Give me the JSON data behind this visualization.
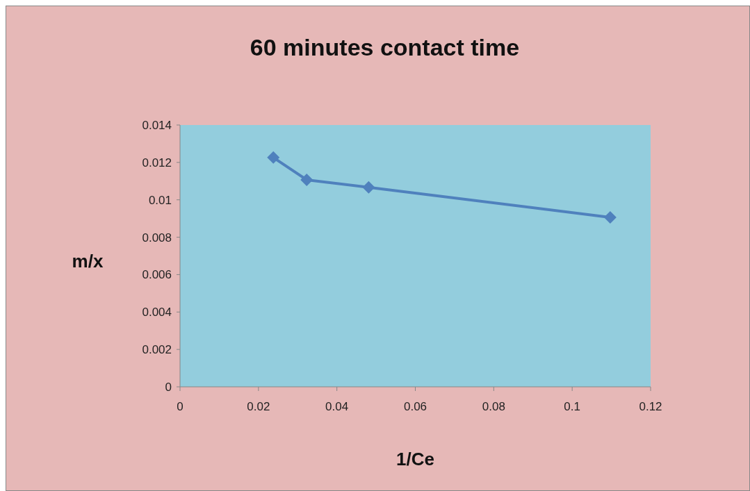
{
  "chart_data": {
    "type": "line",
    "title": "60 minutes contact time",
    "xlabel": "1/Ce",
    "ylabel": "m/x",
    "x": [
      0.0238,
      0.0323,
      0.0481,
      0.1097
    ],
    "series": [
      {
        "color": "#4f81bd",
        "values": [
          0.01226,
          0.01107,
          0.01067,
          0.00906
        ]
      }
    ],
    "xlim": [
      0,
      0.12
    ],
    "xticks": [
      0,
      0.02,
      0.04,
      0.06,
      0.08,
      0.1,
      0.12
    ],
    "ylim": [
      0,
      0.014
    ],
    "yticks": [
      0,
      0.002,
      0.004,
      0.006,
      0.008,
      0.01,
      0.012,
      0.014
    ],
    "marker": "diamond",
    "grid": false
  }
}
